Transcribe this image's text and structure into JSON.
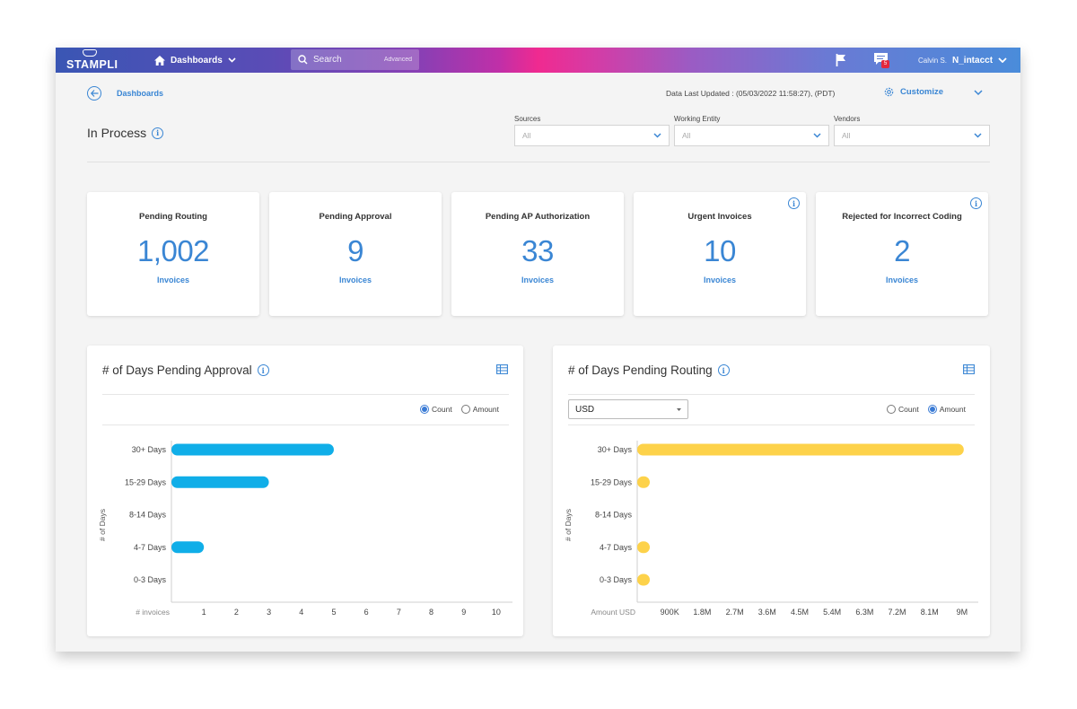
{
  "header": {
    "logo_text": "STAMPLI",
    "nav_label": "Dashboards",
    "search_placeholder": "Search",
    "advanced_label": "Advanced",
    "message_badge": "5",
    "user_name": "Calvin S.",
    "org_name": "N_intacct"
  },
  "subheader": {
    "breadcrumb": "Dashboards",
    "last_updated": "Data Last Updated : (05/03/2022 11:58:27), (PDT)",
    "customize_label": "Customize"
  },
  "page": {
    "title": "In Process"
  },
  "filters": [
    {
      "label": "Sources",
      "value": "All"
    },
    {
      "label": "Working Entity",
      "value": "All"
    },
    {
      "label": "Vendors",
      "value": "All"
    }
  ],
  "kpis": [
    {
      "title": "Pending Routing",
      "value": "1,002",
      "unit": "Invoices",
      "info": false
    },
    {
      "title": "Pending Approval",
      "value": "9",
      "unit": "Invoices",
      "info": false
    },
    {
      "title": "Pending AP Authorization",
      "value": "33",
      "unit": "Invoices",
      "info": false
    },
    {
      "title": "Urgent Invoices",
      "value": "10",
      "unit": "Invoices",
      "info": true
    },
    {
      "title": "Rejected for Incorrect Coding",
      "value": "2",
      "unit": "Invoices",
      "info": true
    }
  ],
  "panels": {
    "approval": {
      "title": "# of Days Pending Approval",
      "radio_count": "Count",
      "radio_amount": "Amount",
      "selected": "Count"
    },
    "routing": {
      "title": "# of Days Pending Routing",
      "currency": "USD",
      "radio_count": "Count",
      "radio_amount": "Amount",
      "selected": "Amount"
    }
  },
  "chart_data": [
    {
      "type": "bar",
      "orientation": "horizontal",
      "title": "# of Days Pending Approval",
      "categories": [
        "30+ Days",
        "15-29 Days",
        "8-14 Days",
        "4-7 Days",
        "0-3 Days"
      ],
      "values": [
        5,
        3,
        0,
        1,
        0
      ],
      "xlabel": "# invoices",
      "ylabel": "# of Days",
      "x_ticks": [
        "1",
        "2",
        "3",
        "4",
        "5",
        "6",
        "7",
        "8",
        "9",
        "10"
      ],
      "xlim": [
        0,
        10.5
      ],
      "color": "#10aee8"
    },
    {
      "type": "bar",
      "orientation": "horizontal",
      "title": "# of Days Pending Routing",
      "categories": [
        "30+ Days",
        "15-29 Days",
        "8-14 Days",
        "4-7 Days",
        "0-3 Days"
      ],
      "values": [
        9000000,
        20000,
        0,
        20000,
        20000
      ],
      "xlabel": "Amount USD",
      "ylabel": "# of Days",
      "x_ticks": [
        "900K",
        "1.8M",
        "2.7M",
        "3.6M",
        "4.5M",
        "5.4M",
        "6.3M",
        "7.2M",
        "8.1M",
        "9M"
      ],
      "xlim": [
        0,
        9400000
      ],
      "color": "#fdd24a"
    }
  ]
}
